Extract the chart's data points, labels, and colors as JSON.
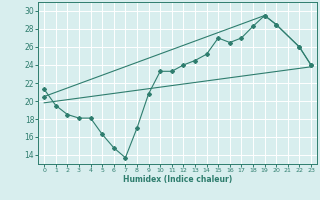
{
  "xlabel": "Humidex (Indice chaleur)",
  "ylabel": "",
  "bg_color": "#d8eeee",
  "grid_color": "#ffffff",
  "line_color": "#2e7d6e",
  "xlim": [
    -0.5,
    23.5
  ],
  "ylim": [
    13,
    31
  ],
  "yticks": [
    14,
    16,
    18,
    20,
    22,
    24,
    26,
    28,
    30
  ],
  "xticks": [
    0,
    1,
    2,
    3,
    4,
    5,
    6,
    7,
    8,
    9,
    10,
    11,
    12,
    13,
    14,
    15,
    16,
    17,
    18,
    19,
    20,
    21,
    22,
    23
  ],
  "line1_x": [
    0,
    1,
    2,
    3,
    4,
    5,
    6,
    7,
    8,
    9,
    10,
    11,
    12,
    13,
    14,
    15,
    16,
    17,
    18,
    19,
    20,
    22,
    23
  ],
  "line1_y": [
    21.3,
    19.5,
    18.5,
    18.1,
    18.1,
    16.3,
    14.8,
    13.7,
    17.0,
    20.8,
    23.3,
    23.3,
    24.0,
    24.5,
    25.2,
    27.0,
    26.5,
    27.0,
    28.3,
    29.5,
    28.5,
    26.0,
    24.0
  ],
  "line2_x": [
    0,
    19,
    20,
    22,
    23
  ],
  "line2_y": [
    20.5,
    29.5,
    28.5,
    26.0,
    24.0
  ],
  "line3_x": [
    0,
    23
  ],
  "line3_y": [
    19.8,
    23.8
  ]
}
